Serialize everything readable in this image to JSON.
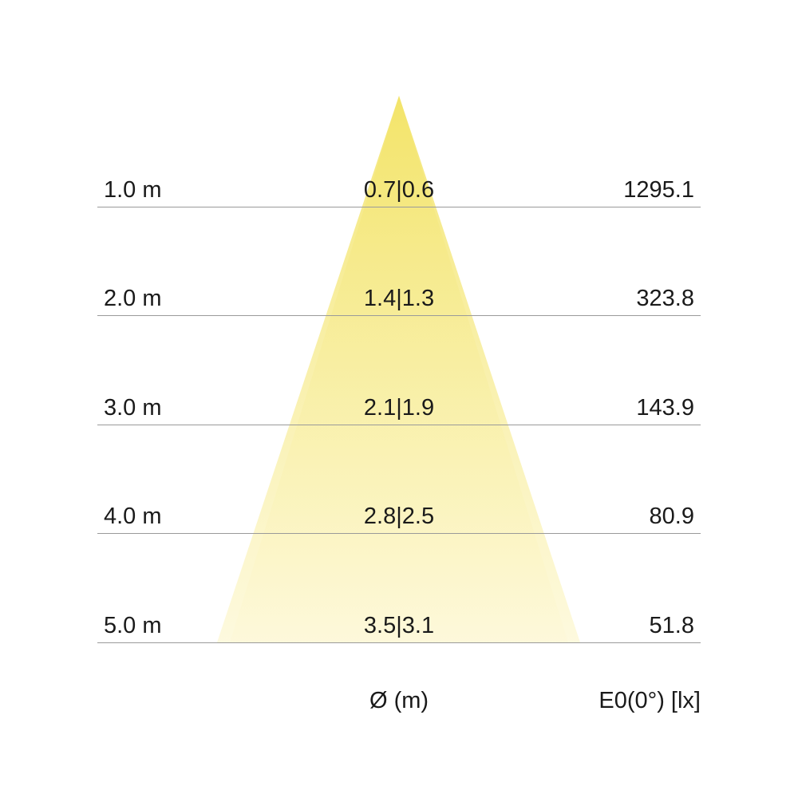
{
  "colors": {
    "beam_top": "#f2e25e",
    "beam_bottom": "#fdf9dc",
    "line": "#9a9a9a"
  },
  "rows": [
    {
      "distance": "1.0 m",
      "diameter": "0.7|0.6",
      "illuminance": "1295.1"
    },
    {
      "distance": "2.0 m",
      "diameter": "1.4|1.3",
      "illuminance": "323.8"
    },
    {
      "distance": "3.0 m",
      "diameter": "2.1|1.9",
      "illuminance": "143.9"
    },
    {
      "distance": "4.0 m",
      "diameter": "2.8|2.5",
      "illuminance": "80.9"
    },
    {
      "distance": "5.0 m",
      "diameter": "3.5|3.1",
      "illuminance": "51.8"
    }
  ],
  "footer": {
    "diameter_label": "Ø (m)",
    "illuminance_label": "E0(0°) [lx]"
  }
}
